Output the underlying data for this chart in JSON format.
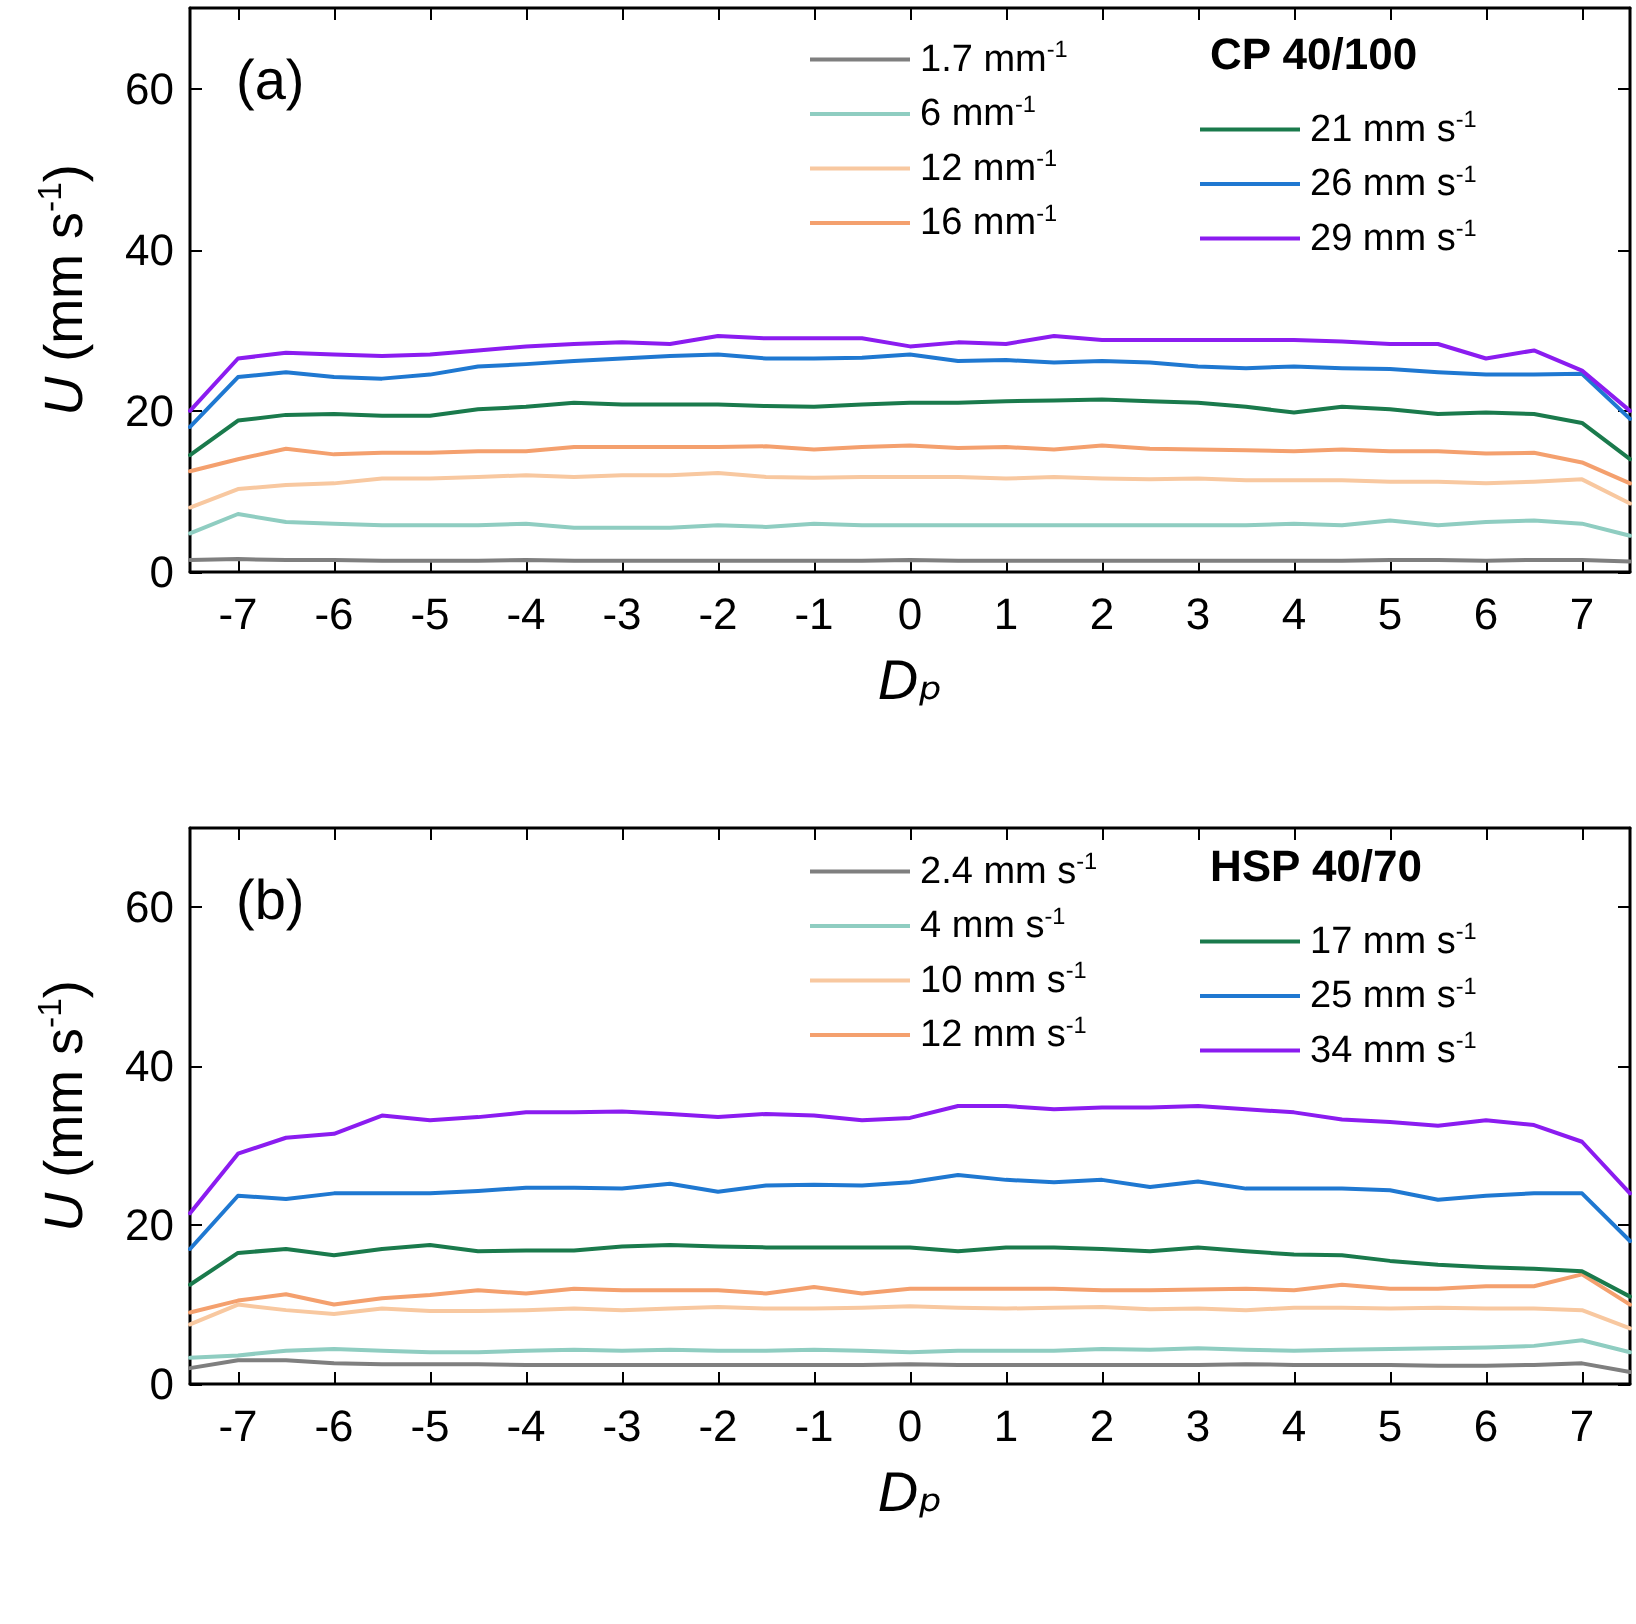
{
  "chart_data": [
    {
      "type": "line",
      "annotations": [
        "(a)"
      ],
      "xlabel": "Dₚ",
      "ylabel": "U (mm s$^{-1}$)",
      "legend_title": "CP 40/100",
      "legend": "top right",
      "grid": false,
      "marker": "none",
      "line_style": "solid",
      "x": [
        -7.5,
        -7,
        -6.5,
        -6,
        -5.5,
        -5,
        -4.5,
        -4,
        -3.5,
        -3,
        -2.5,
        -2,
        -1.5,
        -1,
        -0.5,
        0,
        0.5,
        1,
        1.5,
        2,
        2.5,
        3,
        3.5,
        4,
        4.5,
        5,
        5.5,
        6,
        6.5,
        7,
        7.5
      ],
      "xlim": [
        -7.5,
        7.5
      ],
      "xticks": [
        -7,
        -6,
        -5,
        -4,
        -3,
        -2,
        -1,
        0,
        1,
        2,
        3,
        4,
        5,
        6,
        7
      ],
      "ylim": [
        0,
        70
      ],
      "yticks": [
        0,
        20,
        40,
        60
      ],
      "series": [
        {
          "name": "1.7 mm$^{-1}$",
          "color": "#7f7f7f",
          "values": [
            1.5,
            1.6,
            1.5,
            1.5,
            1.4,
            1.4,
            1.4,
            1.5,
            1.4,
            1.4,
            1.4,
            1.4,
            1.4,
            1.4,
            1.4,
            1.5,
            1.4,
            1.4,
            1.4,
            1.4,
            1.4,
            1.4,
            1.4,
            1.4,
            1.4,
            1.5,
            1.5,
            1.4,
            1.5,
            1.5,
            1.3
          ]
        },
        {
          "name": "6 mm$^{-1}$",
          "color": "#8fcdc1",
          "values": [
            4.8,
            7.2,
            6.2,
            6.0,
            5.8,
            5.8,
            5.8,
            6.0,
            5.5,
            5.5,
            5.5,
            5.8,
            5.6,
            6.0,
            5.8,
            5.8,
            5.8,
            5.8,
            5.8,
            5.8,
            5.8,
            5.8,
            5.8,
            6.0,
            5.8,
            6.4,
            5.8,
            6.2,
            6.4,
            6.0,
            4.5
          ]
        },
        {
          "name": "12 mm$^{-1}$",
          "color": "#f8c8a0",
          "values": [
            8.0,
            10.3,
            10.8,
            11.0,
            11.6,
            11.6,
            11.8,
            12.0,
            11.8,
            12.0,
            12.0,
            12.3,
            11.8,
            11.7,
            11.8,
            11.8,
            11.8,
            11.6,
            11.8,
            11.6,
            11.5,
            11.6,
            11.4,
            11.4,
            11.4,
            11.2,
            11.2,
            11.0,
            11.2,
            11.5,
            8.5
          ]
        },
        {
          "name": "16 mm$^{-1}$",
          "color": "#f4a06e",
          "values": [
            12.5,
            14.0,
            15.3,
            14.6,
            14.8,
            14.8,
            15.0,
            15.0,
            15.5,
            15.5,
            15.5,
            15.5,
            15.6,
            15.2,
            15.5,
            15.7,
            15.4,
            15.5,
            15.2,
            15.7,
            15.3,
            15.2,
            15.1,
            15.0,
            15.2,
            15.0,
            15.0,
            14.7,
            14.8,
            13.6,
            11.0
          ]
        },
        {
          "name": "21 mm s$^{-1}$",
          "color": "#1a7a4c",
          "values": [
            14.5,
            18.8,
            19.5,
            19.6,
            19.4,
            19.4,
            20.2,
            20.5,
            21.0,
            20.8,
            20.8,
            20.8,
            20.6,
            20.5,
            20.8,
            21.0,
            21.0,
            21.2,
            21.3,
            21.4,
            21.2,
            21.0,
            20.5,
            19.8,
            20.5,
            20.2,
            19.6,
            19.8,
            19.6,
            18.5,
            14.0
          ]
        },
        {
          "name": "26 mm s$^{-1}$",
          "color": "#1f78d1",
          "values": [
            18.0,
            24.2,
            24.8,
            24.2,
            24.0,
            24.5,
            25.5,
            25.8,
            26.2,
            26.5,
            26.8,
            27.0,
            26.5,
            26.5,
            26.6,
            27.0,
            26.2,
            26.3,
            26.0,
            26.2,
            26.0,
            25.5,
            25.3,
            25.5,
            25.3,
            25.2,
            24.8,
            24.5,
            24.5,
            24.6,
            19.0
          ]
        },
        {
          "name": "29 mm s$^{-1}$",
          "color": "#8b1cf0",
          "values": [
            20.0,
            26.5,
            27.2,
            27.0,
            26.8,
            27.0,
            27.5,
            28.0,
            28.3,
            28.5,
            28.3,
            29.3,
            29.0,
            29.0,
            29.0,
            28.0,
            28.5,
            28.3,
            29.3,
            28.8,
            28.8,
            28.8,
            28.8,
            28.8,
            28.6,
            28.3,
            28.3,
            26.5,
            27.5,
            25.0,
            20.0
          ]
        }
      ]
    },
    {
      "type": "line",
      "annotations": [
        "(b)"
      ],
      "xlabel": "Dₚ",
      "ylabel": "U (mm s$^{-1}$)",
      "legend_title": "HSP 40/70",
      "legend": "top right",
      "grid": false,
      "marker": "none",
      "line_style": "solid",
      "x": [
        -7.5,
        -7,
        -6.5,
        -6,
        -5.5,
        -5,
        -4.5,
        -4,
        -3.5,
        -3,
        -2.5,
        -2,
        -1.5,
        -1,
        -0.5,
        0,
        0.5,
        1,
        1.5,
        2,
        2.5,
        3,
        3.5,
        4,
        4.5,
        5,
        5.5,
        6,
        6.5,
        7,
        7.5
      ],
      "xlim": [
        -7.5,
        7.5
      ],
      "xticks": [
        -7,
        -6,
        -5,
        -4,
        -3,
        -2,
        -1,
        0,
        1,
        2,
        3,
        4,
        5,
        6,
        7
      ],
      "ylim": [
        0,
        70
      ],
      "yticks": [
        0,
        20,
        40,
        60
      ],
      "series": [
        {
          "name": "2.4 mm s$^{-1}$",
          "color": "#7f7f7f",
          "values": [
            2.0,
            3.0,
            3.0,
            2.6,
            2.5,
            2.5,
            2.5,
            2.4,
            2.4,
            2.4,
            2.4,
            2.4,
            2.4,
            2.4,
            2.4,
            2.5,
            2.4,
            2.4,
            2.4,
            2.4,
            2.4,
            2.4,
            2.5,
            2.4,
            2.4,
            2.4,
            2.3,
            2.3,
            2.4,
            2.6,
            1.5
          ]
        },
        {
          "name": "4 mm s$^{-1}$",
          "color": "#8fcdc1",
          "values": [
            3.3,
            3.6,
            4.2,
            4.4,
            4.2,
            4.0,
            4.0,
            4.2,
            4.3,
            4.2,
            4.3,
            4.2,
            4.2,
            4.3,
            4.2,
            4.0,
            4.2,
            4.2,
            4.2,
            4.4,
            4.3,
            4.5,
            4.3,
            4.2,
            4.3,
            4.4,
            4.5,
            4.6,
            4.8,
            5.5,
            4.0
          ]
        },
        {
          "name": "10 mm s$^{-1}$",
          "color": "#f8c8a0",
          "values": [
            7.5,
            10.0,
            9.3,
            8.8,
            9.5,
            9.2,
            9.2,
            9.3,
            9.5,
            9.3,
            9.5,
            9.7,
            9.5,
            9.5,
            9.6,
            9.8,
            9.6,
            9.5,
            9.6,
            9.7,
            9.4,
            9.5,
            9.3,
            9.6,
            9.6,
            9.5,
            9.6,
            9.5,
            9.5,
            9.3,
            7.0
          ]
        },
        {
          "name": "12 mm s$^{-1}$",
          "color": "#f4a06e",
          "values": [
            9.0,
            10.5,
            11.3,
            10.0,
            10.8,
            11.2,
            11.8,
            11.4,
            12.0,
            11.8,
            11.8,
            11.8,
            11.4,
            12.2,
            11.4,
            12.0,
            12.0,
            12.0,
            12.0,
            11.8,
            11.8,
            11.9,
            12.0,
            11.8,
            12.5,
            12.0,
            12.0,
            12.3,
            12.3,
            13.8,
            10.0
          ]
        },
        {
          "name": "17 mm s$^{-1}$",
          "color": "#1a7a4c",
          "values": [
            12.5,
            16.5,
            17.0,
            16.2,
            17.0,
            17.5,
            16.7,
            16.8,
            16.8,
            17.3,
            17.5,
            17.3,
            17.2,
            17.2,
            17.2,
            17.2,
            16.7,
            17.2,
            17.2,
            17.0,
            16.7,
            17.2,
            16.7,
            16.3,
            16.2,
            15.5,
            15.0,
            14.7,
            14.5,
            14.2,
            11.0
          ]
        },
        {
          "name": "25 mm s$^{-1}$",
          "color": "#1f78d1",
          "values": [
            17.0,
            23.7,
            23.3,
            24.0,
            24.0,
            24.0,
            24.3,
            24.7,
            24.7,
            24.6,
            25.2,
            24.2,
            25.0,
            25.1,
            25.0,
            25.4,
            26.3,
            25.7,
            25.4,
            25.7,
            24.8,
            25.5,
            24.6,
            24.6,
            24.6,
            24.4,
            23.2,
            23.7,
            24.0,
            24.0,
            18.0
          ]
        },
        {
          "name": "34 mm s$^{-1}$",
          "color": "#8b1cf0",
          "values": [
            21.5,
            29.0,
            31.0,
            31.5,
            33.8,
            33.2,
            33.6,
            34.2,
            34.2,
            34.3,
            34.0,
            33.6,
            34.0,
            33.8,
            33.2,
            33.5,
            35.0,
            35.0,
            34.6,
            34.8,
            34.8,
            35.0,
            34.6,
            34.2,
            33.3,
            33.0,
            32.5,
            33.2,
            32.6,
            30.5,
            24.0
          ]
        }
      ]
    }
  ]
}
